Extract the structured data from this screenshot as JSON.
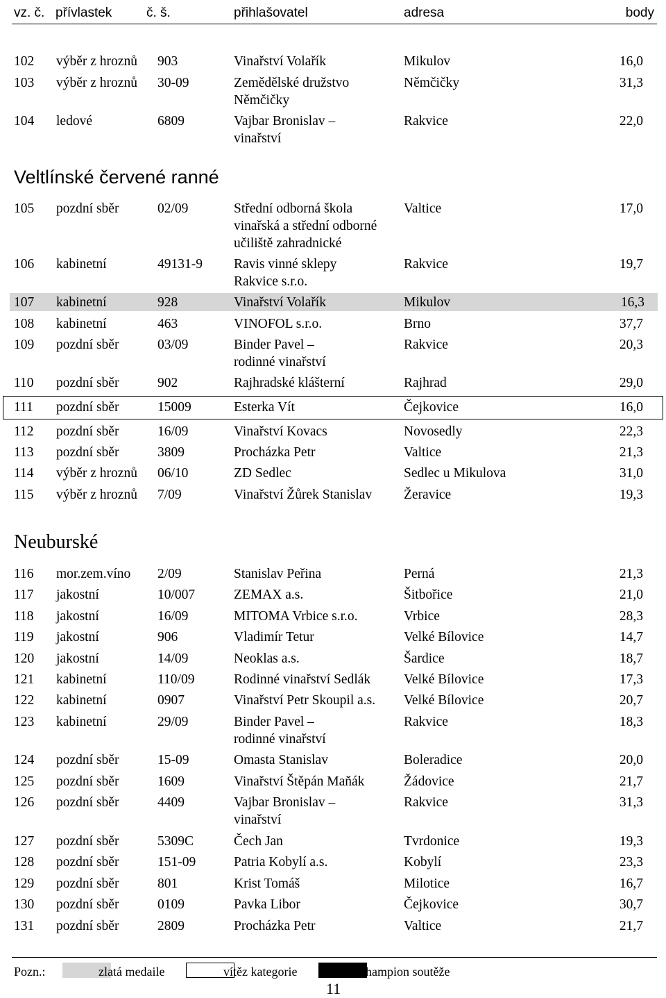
{
  "header": {
    "col1": "vz. č.",
    "col2": "přívlastek",
    "col3": "č. š.",
    "col4": "přihlašovatel",
    "col5": "adresa",
    "col6": "body"
  },
  "rows_a": [
    {
      "no": "102",
      "attr": "výběr z hroznů",
      "lot": "903",
      "entrant": "Vinařství Volařík",
      "entrant2": "",
      "addr": "Mikulov",
      "pts": "16,0"
    },
    {
      "no": "103",
      "attr": "výběr z hroznů",
      "lot": "30-09",
      "entrant": "Zemědělské družstvo",
      "entrant2": "Němčičky",
      "addr": "Němčičky",
      "pts": "31,3"
    },
    {
      "no": "104",
      "attr": "ledové",
      "lot": "6809",
      "entrant": "Vajbar Bronislav –",
      "entrant2": "vinařství",
      "addr": "Rakvice",
      "pts": "22,0"
    }
  ],
  "section1": "Veltlínské červené ranné",
  "rows_b": [
    {
      "no": "105",
      "attr": "pozdní sběr",
      "lot": "02/09",
      "entrant": "Střední odborná škola",
      "entrant2": "vinařská a střední odborné",
      "entrant3": "učiliště zahradnické",
      "addr": "Valtice",
      "pts": "17,0"
    },
    {
      "no": "106",
      "attr": "kabinetní",
      "lot": "49131-9",
      "entrant": "Ravis vinné sklepy",
      "entrant2": "Rakvice s.r.o.",
      "addr": "Rakvice",
      "pts": "19,7"
    },
    {
      "no": "107",
      "attr": "kabinetní",
      "lot": "928",
      "entrant": "Vinařství Volařík",
      "addr": "Mikulov",
      "pts": "16,3"
    },
    {
      "no": "108",
      "attr": "kabinetní",
      "lot": "463",
      "entrant": "VINOFOL s.r.o.",
      "addr": "Brno",
      "pts": "37,7"
    },
    {
      "no": "109",
      "attr": "pozdní sběr",
      "lot": "03/09",
      "entrant": "Binder Pavel –",
      "entrant2": "rodinné vinařství",
      "addr": "Rakvice",
      "pts": "20,3"
    },
    {
      "no": "110",
      "attr": "pozdní sběr",
      "lot": "902",
      "entrant": "Rajhradské klášterní",
      "addr": "Rajhrad",
      "pts": "29,0"
    },
    {
      "no": "111",
      "attr": "pozdní sběr",
      "lot": "15009",
      "entrant": "Esterka Vít",
      "addr": "Čejkovice",
      "pts": "16,0"
    },
    {
      "no": "112",
      "attr": "pozdní sběr",
      "lot": "16/09",
      "entrant": "Vinařství Kovacs",
      "addr": "Novosedly",
      "pts": "22,3"
    },
    {
      "no": "113",
      "attr": "pozdní sběr",
      "lot": "3809",
      "entrant": "Procházka Petr",
      "addr": "Valtice",
      "pts": "21,3"
    },
    {
      "no": "114",
      "attr": "výběr z hroznů",
      "lot": "06/10",
      "entrant": "ZD Sedlec",
      "addr": "Sedlec u Mikulova",
      "pts": "31,0"
    },
    {
      "no": "115",
      "attr": "výběr z hroznů",
      "lot": "7/09",
      "entrant": "Vinařství Žůrek Stanislav",
      "addr": "Žeravice",
      "pts": "19,3"
    }
  ],
  "section2": "Neuburské",
  "rows_c": [
    {
      "no": "116",
      "attr": "mor.zem.víno",
      "lot": "2/09",
      "entrant": "Stanislav Peřina",
      "addr": "Perná",
      "pts": "21,3"
    },
    {
      "no": "117",
      "attr": "jakostní",
      "lot": "10/007",
      "entrant": "ZEMAX a.s.",
      "addr": "Šitbořice",
      "pts": "21,0"
    },
    {
      "no": "118",
      "attr": "jakostní",
      "lot": "16/09",
      "entrant": "MITOMA Vrbice s.r.o.",
      "addr": "Vrbice",
      "pts": "28,3"
    },
    {
      "no": "119",
      "attr": "jakostní",
      "lot": "906",
      "entrant": "Vladimír Tetur",
      "addr": "Velké Bílovice",
      "pts": "14,7"
    },
    {
      "no": "120",
      "attr": "jakostní",
      "lot": "14/09",
      "entrant": "Neoklas a.s.",
      "addr": "Šardice",
      "pts": "18,7"
    },
    {
      "no": "121",
      "attr": "kabinetní",
      "lot": "110/09",
      "entrant": "Rodinné vinařství Sedlák",
      "addr": "Velké Bílovice",
      "pts": "17,3"
    },
    {
      "no": "122",
      "attr": "kabinetní",
      "lot": "0907",
      "entrant": "Vinařství Petr Skoupil a.s.",
      "addr": "Velké Bílovice",
      "pts": "20,7"
    },
    {
      "no": "123",
      "attr": "kabinetní",
      "lot": "29/09",
      "entrant": "Binder Pavel –",
      "entrant2": "rodinné vinařství",
      "addr": "Rakvice",
      "pts": "18,3"
    },
    {
      "no": "124",
      "attr": "pozdní sběr",
      "lot": "15-09",
      "entrant": "Omasta Stanislav",
      "addr": "Boleradice",
      "pts": "20,0"
    },
    {
      "no": "125",
      "attr": "pozdní sběr",
      "lot": "1609",
      "entrant": "Vinařství Štěpán Maňák",
      "addr": "Žádovice",
      "pts": "21,7"
    },
    {
      "no": "126",
      "attr": "pozdní sběr",
      "lot": "4409",
      "entrant": "Vajbar Bronislav –",
      "entrant2": "vinařství",
      "addr": "Rakvice",
      "pts": "31,3"
    },
    {
      "no": "127",
      "attr": "pozdní sběr",
      "lot": "5309C",
      "entrant": "Čech Jan",
      "addr": "Tvrdonice",
      "pts": "19,3"
    },
    {
      "no": "128",
      "attr": "pozdní sběr",
      "lot": "151-09",
      "entrant": "Patria Kobylí a.s.",
      "addr": "Kobylí",
      "pts": "23,3"
    },
    {
      "no": "129",
      "attr": "pozdní sběr",
      "lot": "801",
      "entrant": "Krist Tomáš",
      "addr": "Milotice",
      "pts": "16,7"
    },
    {
      "no": "130",
      "attr": "pozdní sběr",
      "lot": "0109",
      "entrant": "Pavka Libor",
      "addr": "Čejkovice",
      "pts": "30,7"
    },
    {
      "no": "131",
      "attr": "pozdní sběr",
      "lot": "2809",
      "entrant": "Procházka Petr",
      "addr": "Valtice",
      "pts": "21,7"
    }
  ],
  "footer": {
    "note": "Pozn.:",
    "legend_gold": "zlatá medaile",
    "legend_winner": "vítěz kategorie",
    "legend_champion": "Champion soutěže",
    "gold_color": "#d6d6d6",
    "champion_color": "#000000",
    "page_number": "11"
  }
}
